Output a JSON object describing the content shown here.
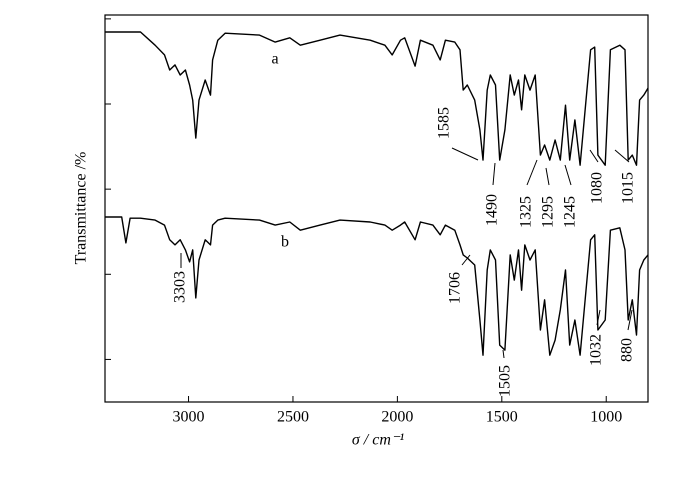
{
  "chart_data": {
    "type": "line",
    "x_label": "σ / cm⁻¹",
    "y_label": "Transmittance /%",
    "x": [
      3400,
      3320,
      3300,
      3280,
      3230,
      3160,
      3115,
      3090,
      3065,
      3040,
      3015,
      2995,
      2980,
      2965,
      2950,
      2920,
      2895,
      2885,
      2860,
      2825,
      2660,
      2585,
      2515,
      2465,
      2370,
      2275,
      2130,
      2060,
      2025,
      1985,
      1965,
      1915,
      1890,
      1830,
      1795,
      1770,
      1725,
      1700,
      1685,
      1665,
      1630,
      1605,
      1590,
      1570,
      1555,
      1530,
      1510,
      1485,
      1460,
      1440,
      1420,
      1405,
      1390,
      1365,
      1340,
      1315,
      1295,
      1270,
      1245,
      1220,
      1195,
      1175,
      1150,
      1125,
      1075,
      1055,
      1040,
      1005,
      980,
      935,
      910,
      895,
      875,
      855,
      840,
      820,
      800
    ],
    "series": [
      {
        "name": "a",
        "color": "#000000",
        "peak_labels": [
          "1585",
          "1490",
          "1325",
          "1295",
          "1245",
          "1080",
          "1015"
        ],
        "values": [
          95.6,
          95.6,
          95.6,
          95.6,
          95.6,
          92.2,
          89.7,
          85.8,
          87.1,
          84.5,
          85.8,
          81.9,
          78.0,
          68.2,
          78.0,
          83.2,
          79.3,
          88.4,
          93.5,
          95.3,
          94.8,
          93.0,
          94.1,
          92.2,
          93.5,
          94.8,
          93.5,
          92.2,
          89.7,
          93.5,
          94.1,
          86.8,
          93.5,
          92.2,
          88.4,
          93.5,
          93.0,
          91.0,
          80.6,
          81.9,
          78.0,
          70.3,
          62.5,
          80.6,
          84.5,
          81.9,
          62.5,
          70.3,
          84.5,
          79.3,
          83.2,
          75.5,
          84.5,
          80.6,
          84.5,
          63.8,
          66.4,
          62.5,
          67.7,
          62.5,
          76.7,
          62.5,
          72.9,
          61.2,
          91.0,
          91.7,
          63.8,
          61.2,
          91.0,
          92.2,
          91.0,
          62.5,
          63.8,
          61.2,
          78.0,
          79.3,
          81.1
        ]
      },
      {
        "name": "b",
        "color": "#000000",
        "peak_labels": [
          "3303",
          "1706",
          "1505",
          "1032",
          "880"
        ],
        "values": [
          47.8,
          47.8,
          41.1,
          47.5,
          47.5,
          47.0,
          45.7,
          41.9,
          40.6,
          41.9,
          39.3,
          36.2,
          39.3,
          26.9,
          36.7,
          41.9,
          40.6,
          45.7,
          47.0,
          47.5,
          47.0,
          45.7,
          46.5,
          44.4,
          45.7,
          47.0,
          46.5,
          45.7,
          44.4,
          45.7,
          46.5,
          41.9,
          46.5,
          45.7,
          43.2,
          45.7,
          44.4,
          40.6,
          38.0,
          37.2,
          35.4,
          21.2,
          12.1,
          34.1,
          39.3,
          36.7,
          14.7,
          13.4,
          38.0,
          31.5,
          39.3,
          28.9,
          40.6,
          36.7,
          39.3,
          18.6,
          26.4,
          12.1,
          16.0,
          23.8,
          34.1,
          14.7,
          21.2,
          12.1,
          41.9,
          43.2,
          18.6,
          21.2,
          44.4,
          45.0,
          39.3,
          21.2,
          26.4,
          17.3,
          34.1,
          36.7,
          38.0
        ]
      }
    ],
    "xlim": [
      3400,
      800
    ],
    "xticks": [
      3000,
      2500,
      2000,
      1500,
      1000
    ],
    "ylim": [
      0,
      100
    ],
    "yticks": [
      11,
      33,
      55,
      77,
      99
    ],
    "grid": false
  }
}
